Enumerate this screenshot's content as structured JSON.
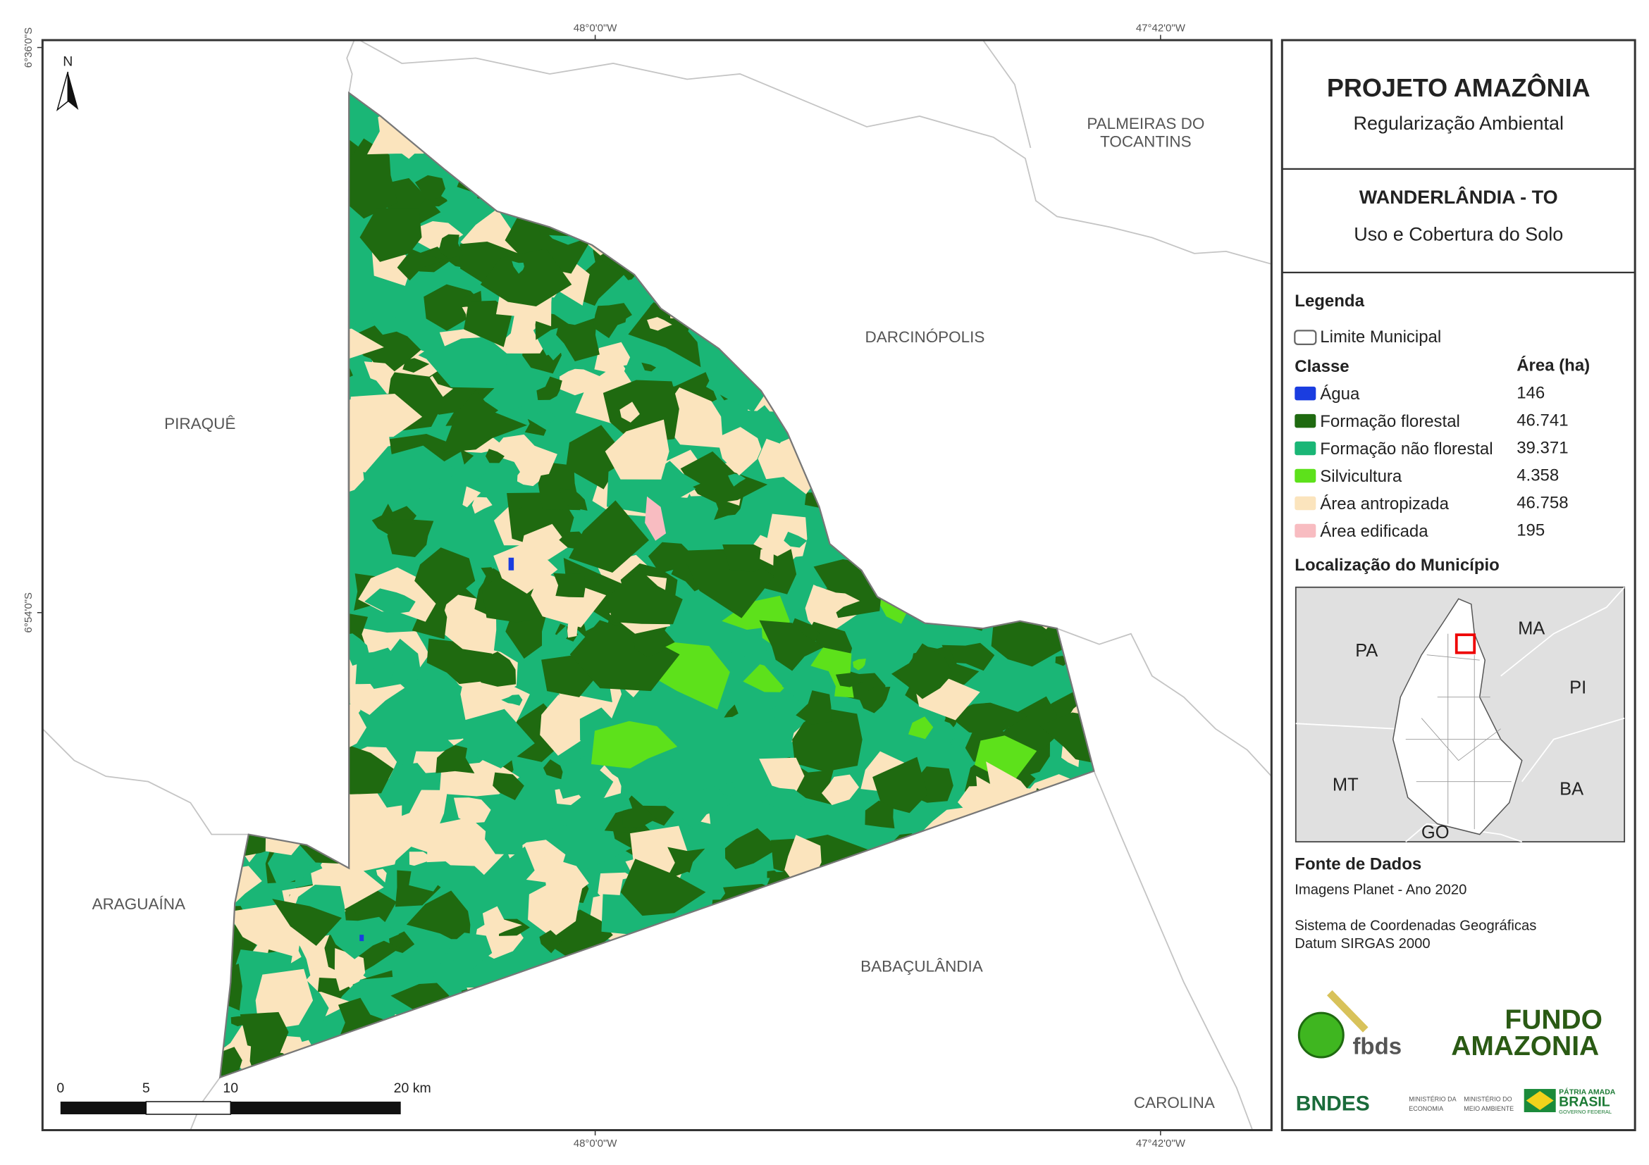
{
  "map": {
    "coords": {
      "top": [
        "48°0'0\"W",
        "47°42'0\"W"
      ],
      "bottom": [
        "48°0'0\"W",
        "47°42'0\"W"
      ],
      "left": [
        "6°36'0\"S",
        "6°54'0\"S"
      ]
    },
    "north": "N",
    "places": [
      {
        "lines": [
          "PALMEIRAS DO",
          "TOCANTINS"
        ]
      },
      {
        "lines": [
          "DARCINÓPOLIS"
        ]
      },
      {
        "lines": [
          "PIRAQUÊ"
        ]
      },
      {
        "lines": [
          "ARAGUAÍNA"
        ]
      },
      {
        "lines": [
          "BABAÇULÂNDIA"
        ]
      },
      {
        "lines": [
          "CAROLINA"
        ]
      }
    ],
    "scale_bar": [
      "0",
      "5",
      "10",
      "20 km"
    ]
  },
  "panel": {
    "title": "PROJETO AMAZÔNIA",
    "subtitle": "Regularização Ambiental",
    "municipality": "WANDERLÂNDIA - TO",
    "theme": "Uso e Cobertura do Solo",
    "legend": {
      "heading": "Legenda",
      "boundary": "Limite Municipal",
      "class_header": "Classe",
      "area_header": "Área (ha)",
      "classes": [
        {
          "name": "Água",
          "area": "146",
          "color": "#1a3de0"
        },
        {
          "name": "Formação florestal",
          "area": "46.741",
          "color": "#1f6a10"
        },
        {
          "name": "Formação não florestal",
          "area": "39.371",
          "color": "#1ab676"
        },
        {
          "name": "Silvicultura",
          "area": "4.358",
          "color": "#5de11b"
        },
        {
          "name": "Área antropizada",
          "area": "46.758",
          "color": "#fbe4bd"
        },
        {
          "name": "Área edificada",
          "area": "195",
          "color": "#f8bcc1"
        }
      ]
    },
    "location": {
      "heading": "Localização do Município",
      "labels": [
        "PA",
        "MA",
        "PI",
        "MT",
        "BA",
        "GO"
      ]
    },
    "sources": {
      "heading": "Fonte de Dados",
      "lines": [
        "Imagens Planet - Ano 2020",
        "Sistema de Coordenadas Geográficas",
        "Datum SIRGAS 2000"
      ]
    },
    "logos": {
      "fbds": "fbds",
      "fundo": [
        "FUNDO",
        "AMAZONIA"
      ],
      "bndes": "BNDES",
      "ministries": [
        "MINISTÉRIO DA",
        "ECONOMIA",
        "MINISTÉRIO DO",
        "MEIO AMBIENTE"
      ],
      "brasil": [
        "PÁTRIA AMADA",
        "BRASIL",
        "GOVERNO FEDERAL"
      ]
    }
  }
}
